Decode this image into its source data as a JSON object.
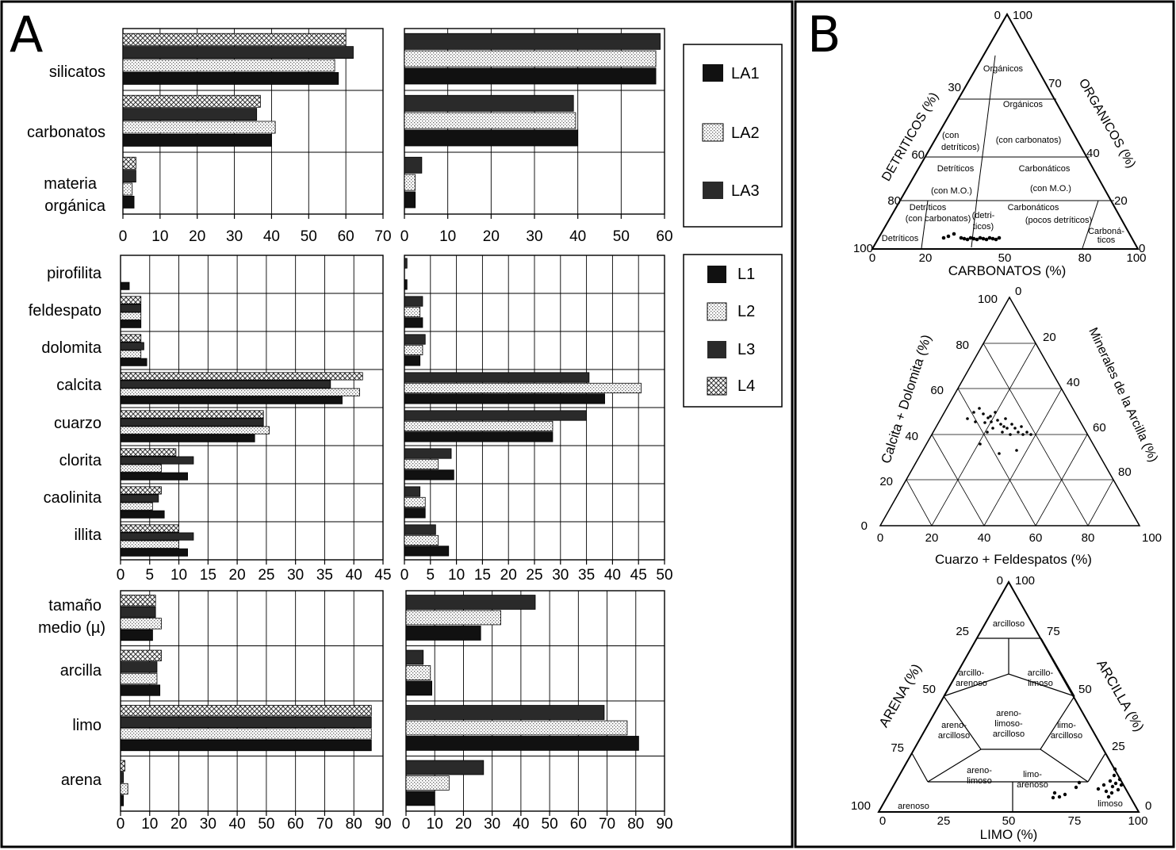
{
  "panel_labels": {
    "a": "A",
    "b": "B"
  },
  "colors": {
    "L1": "#111111",
    "L2": "#e4e4e4",
    "L3": "#2a2a2a",
    "L4": "#c4c4c4",
    "LA1": "#111111",
    "LA2": "#e4e4e4",
    "LA3": "#2a2a2a"
  },
  "chart_data": [
    {
      "type": "bar",
      "orientation": "horizontal",
      "group": "top-left",
      "categories": [
        "silicatos",
        "carbonatos",
        "materia\norgánica"
      ],
      "series": [
        {
          "name": "LA1",
          "values": [
            58,
            40,
            3
          ]
        },
        {
          "name": "LA2",
          "values": [
            57,
            41,
            2.5
          ]
        },
        {
          "name": "LA3",
          "values": [
            62,
            36,
            3.5
          ]
        },
        {
          "name": "L4",
          "values": [
            60,
            37,
            3.5
          ]
        }
      ],
      "xlim": [
        0,
        70
      ],
      "xticks": [
        "0",
        "10",
        "20",
        "30",
        "40",
        "50",
        "60",
        "70"
      ]
    },
    {
      "type": "bar",
      "orientation": "horizontal",
      "group": "top-right",
      "categories": [
        "silicatos",
        "carbonatos",
        "materia orgánica"
      ],
      "series": [
        {
          "name": "LA1",
          "values": [
            58,
            40,
            2.5
          ]
        },
        {
          "name": "LA2",
          "values": [
            58,
            39.5,
            2.5
          ]
        },
        {
          "name": "LA3",
          "values": [
            59,
            39,
            4
          ]
        }
      ],
      "xlim": [
        0,
        60
      ],
      "xticks": [
        "0",
        "10",
        "20",
        "30",
        "40",
        "50",
        "60"
      ]
    },
    {
      "type": "bar",
      "orientation": "horizontal",
      "group": "middle-left",
      "categories": [
        "pirofilita",
        "feldespato",
        "dolomita",
        "calcita",
        "cuarzo",
        "clorita",
        "caolinita",
        "illita"
      ],
      "series": [
        {
          "name": "L1",
          "values": [
            1.5,
            3.5,
            4.5,
            38,
            23,
            11.5,
            7.5,
            11.5
          ]
        },
        {
          "name": "L2",
          "values": [
            0,
            3.5,
            3.5,
            41,
            25.5,
            7,
            5.5,
            10
          ]
        },
        {
          "name": "L3",
          "values": [
            0,
            3.5,
            4,
            36,
            24.5,
            12.5,
            6.5,
            12.5
          ]
        },
        {
          "name": "L4",
          "values": [
            0,
            3.5,
            3.5,
            41.5,
            24.5,
            9.5,
            7,
            10
          ]
        }
      ],
      "xlim": [
        0,
        45
      ],
      "xticks": [
        "0",
        "5",
        "10",
        "15",
        "20",
        "25",
        "30",
        "35",
        "40",
        "45"
      ]
    },
    {
      "type": "bar",
      "orientation": "horizontal",
      "group": "middle-right",
      "categories": [
        "pirofilita",
        "feldespato",
        "dolomita",
        "calcita",
        "cuarzo",
        "clorita",
        "caolinita",
        "illita"
      ],
      "series": [
        {
          "name": "L1",
          "values": [
            0.5,
            3.5,
            3,
            38.5,
            28.5,
            9.5,
            4,
            8.5
          ]
        },
        {
          "name": "L2",
          "values": [
            0,
            3,
            3.5,
            45.5,
            28.5,
            6.5,
            4,
            6.5
          ]
        },
        {
          "name": "L3",
          "values": [
            0.5,
            3.5,
            4,
            35.5,
            35,
            9,
            3,
            6
          ]
        }
      ],
      "xlim": [
        0,
        50
      ],
      "xticks": [
        "0",
        "5",
        "10",
        "15",
        "20",
        "25",
        "30",
        "35",
        "40",
        "45",
        "50"
      ]
    },
    {
      "type": "bar",
      "orientation": "horizontal",
      "group": "bottom-left",
      "categories": [
        "tamaño\nmedio (µ)",
        "arcilla",
        "limo",
        "arena"
      ],
      "series": [
        {
          "name": "L1",
          "values": [
            11,
            13.5,
            86,
            1
          ]
        },
        {
          "name": "L2",
          "values": [
            14,
            12.5,
            86,
            2.5
          ]
        },
        {
          "name": "L3",
          "values": [
            12,
            12.5,
            86,
            1
          ]
        },
        {
          "name": "L4",
          "values": [
            12,
            14,
            86,
            1.5
          ]
        }
      ],
      "xlim": [
        0,
        90
      ],
      "xticks": [
        "0",
        "10",
        "20",
        "30",
        "40",
        "50",
        "60",
        "70",
        "80",
        "90"
      ]
    },
    {
      "type": "bar",
      "orientation": "horizontal",
      "group": "bottom-right",
      "categories": [
        "tamaño medio (µ)",
        "arcilla",
        "limo",
        "arena"
      ],
      "series": [
        {
          "name": "L1",
          "values": [
            26,
            9,
            81,
            10
          ]
        },
        {
          "name": "L2",
          "values": [
            33,
            8.5,
            77,
            15
          ]
        },
        {
          "name": "L3",
          "values": [
            45,
            6,
            69,
            27
          ]
        }
      ],
      "xlim": [
        0,
        90
      ],
      "xticks": [
        "0",
        "10",
        "20",
        "30",
        "40",
        "50",
        "60",
        "70",
        "80",
        "90"
      ]
    }
  ],
  "legend_top": [
    "LA1",
    "LA2",
    "LA3"
  ],
  "legend_mid": [
    "L1",
    "L2",
    "L3",
    "L4"
  ],
  "labels_top": [
    "silicatos",
    "carbonatos",
    "materia",
    "orgánica"
  ],
  "labels_mid": [
    "pirofilita",
    "feldespato",
    "dolomita",
    "calcita",
    "cuarzo",
    "clorita",
    "caolinita",
    "illita"
  ],
  "labels_bot": [
    "tamaño",
    "medio (µ)",
    "arcilla",
    "limo",
    "arena"
  ],
  "ternary1": {
    "axis_left": "DETRITICOS (%)",
    "axis_right": "ORGANICOS (%)",
    "axis_bottom": "CARBONATOS (%)",
    "tick_top": [
      "0",
      "100"
    ],
    "tick_left": [
      "30",
      "60",
      "80",
      "100"
    ],
    "tick_right": [
      "70",
      "40",
      "20",
      "0"
    ],
    "tick_bottom": [
      "0",
      "20",
      "50",
      "80",
      "100"
    ],
    "regions": [
      "Orgánicos",
      "Orgánicos",
      "(con",
      "detríticos)",
      "(con carbonatos)",
      "Detríticos",
      "Carbonáticos",
      "(con M.O.)",
      "(con M.O.)",
      "Detríticos",
      "(con carbonatos)",
      "(detri-",
      "ticos)",
      "Carbonáticos",
      "(pocos detríticos)",
      "Carboná-",
      "ticos",
      "Detríticos"
    ]
  },
  "ternary2": {
    "axis_left": "Calcita + Dolomita (%)",
    "axis_right": "Minerales de la Arcilla (%)",
    "axis_bottom": "Cuarzo + Feldespatos (%)",
    "tick_left": [
      "100",
      "80",
      "60",
      "40",
      "20",
      "0"
    ],
    "tick_top": [
      "0"
    ],
    "tick_right": [
      "20",
      "40",
      "60",
      "80",
      "100"
    ],
    "tick_bottom": [
      "0",
      "20",
      "40",
      "60",
      "80",
      "100"
    ]
  },
  "ternary3": {
    "axis_left": "ARENA (%)",
    "axis_right": "ARCILLA (%)",
    "axis_bottom": "LIMO (%)",
    "tick_top": [
      "0",
      "100"
    ],
    "tick_left": [
      "25",
      "50",
      "75",
      "100"
    ],
    "tick_right": [
      "75",
      "50",
      "25",
      "0"
    ],
    "tick_bottom": [
      "0",
      "25",
      "50",
      "75",
      "100"
    ],
    "regions": [
      "arcilloso",
      "arcillo-",
      "arenoso",
      "arcillo-",
      "limoso",
      "areno-",
      "limoso-",
      "arcilloso",
      "areno-",
      "arcilloso",
      "limo-",
      "arcilloso",
      "areno-",
      "limoso",
      "limo-",
      "arenoso",
      "arenoso",
      "limoso"
    ]
  }
}
